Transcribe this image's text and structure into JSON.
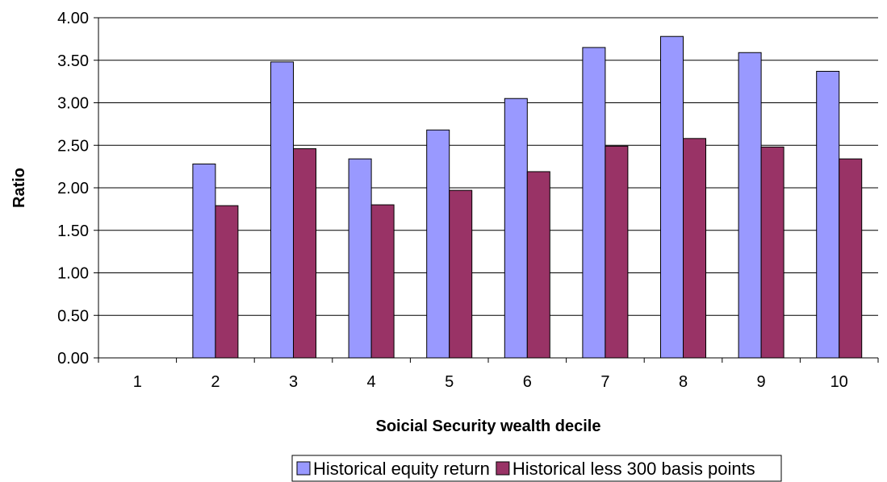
{
  "chart_data": {
    "type": "bar",
    "title": "",
    "xlabel": "Soicial Security wealth decile",
    "ylabel": "Ratio",
    "categories": [
      "1",
      "2",
      "3",
      "4",
      "5",
      "6",
      "7",
      "8",
      "9",
      "10"
    ],
    "ylim": [
      0,
      4
    ],
    "yticks": [
      "0.00",
      "0.50",
      "1.00",
      "1.50",
      "2.00",
      "2.50",
      "3.00",
      "3.50",
      "4.00"
    ],
    "grid": "horizontal",
    "legend": "bottom",
    "series": [
      {
        "name": "Historical equity return",
        "color": "#9999ff",
        "values": [
          null,
          2.28,
          3.48,
          2.34,
          2.68,
          3.05,
          3.65,
          3.78,
          3.59,
          3.37
        ]
      },
      {
        "name": "Historical less 300 basis points",
        "color": "#993366",
        "values": [
          null,
          1.79,
          2.46,
          1.8,
          1.97,
          2.19,
          2.49,
          2.58,
          2.48,
          2.34
        ]
      }
    ]
  }
}
